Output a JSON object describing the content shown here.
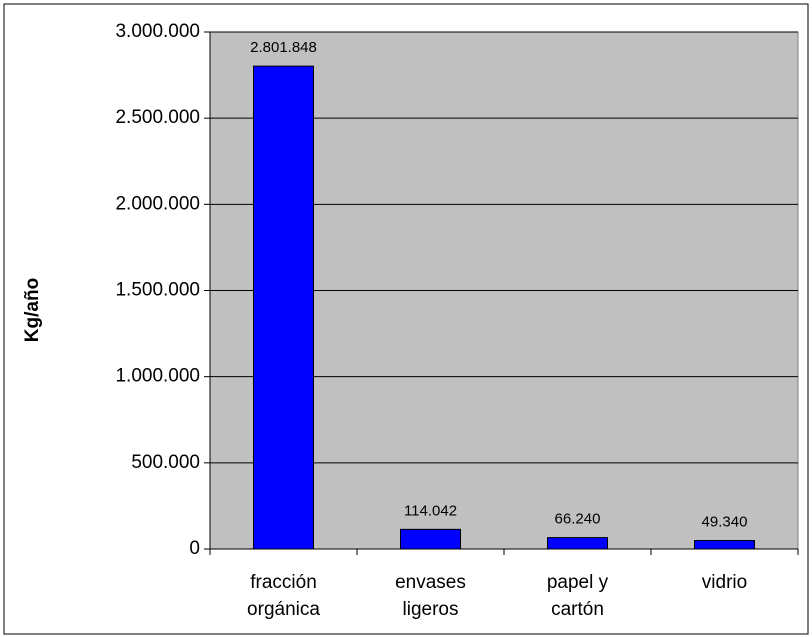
{
  "chart_data": {
    "type": "bar",
    "y_label": "Kg/año",
    "categories": [
      "fracción\norgánica",
      "envases\nligeros",
      "papel y\ncartón",
      "vidrio"
    ],
    "values": [
      2801848,
      114042,
      66240,
      49340
    ],
    "value_labels": [
      "2.801.848",
      "114.042",
      "66.240",
      "49.340"
    ],
    "color": "#0000ff",
    "ylim": [
      0,
      3000000
    ],
    "yticks": [
      0,
      {
        "value": 500000,
        "label": "500.000"
      },
      {
        "value": 1000000,
        "label": "1.000.000"
      },
      {
        "value": 1500000,
        "label": "1.500.000"
      },
      {
        "value": 2000000,
        "label": "2.000.000"
      },
      {
        "value": 2500000,
        "label": "2.500.000"
      },
      {
        "value": 3000000,
        "label": "3.000.000"
      }
    ],
    "grid": true
  }
}
